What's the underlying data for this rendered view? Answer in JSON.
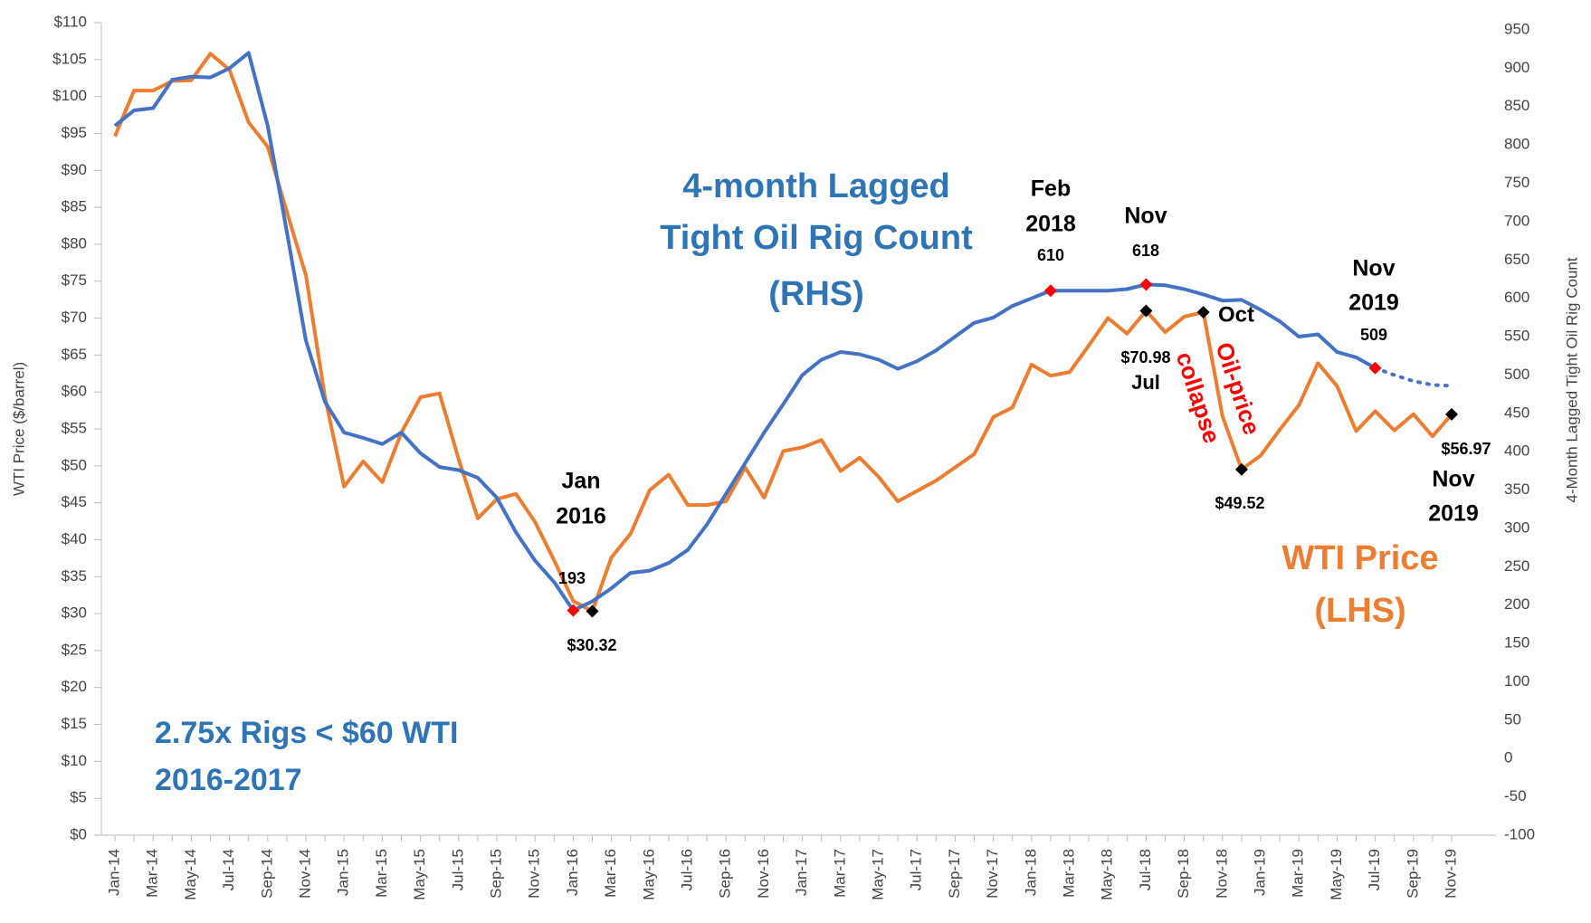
{
  "chart_data": {
    "type": "line",
    "y_label": "WTI Price ($/barrel)",
    "y2_label": "4-Month Lagged Tight Oil Rig Count",
    "categories": [
      "Jan-14",
      null,
      "Mar-14",
      null,
      "May-14",
      null,
      "Jul-14",
      null,
      "Sep-14",
      null,
      "Nov-14",
      null,
      "Jan-15",
      null,
      "Mar-15",
      null,
      "May-15",
      null,
      "Jul-15",
      null,
      "Sep-15",
      null,
      "Nov-15",
      null,
      "Jan-16",
      null,
      "Mar-16",
      null,
      "May-16",
      null,
      "Jul-16",
      null,
      "Sep-16",
      null,
      "Nov-16",
      null,
      "Jan-17",
      null,
      "Mar-17",
      null,
      "May-17",
      null,
      "Jul-17",
      null,
      "Sep-17",
      null,
      "Nov-17",
      null,
      "Jan-18",
      null,
      "Mar-18",
      null,
      "May-18",
      null,
      "Jul-18",
      null,
      "Sep-18",
      null,
      "Nov-18",
      null,
      "Jan-19",
      null,
      "Mar-19",
      null,
      "May-19",
      null,
      "Jul-19",
      null,
      "Sep-19",
      null,
      "Nov-19"
    ],
    "series": [
      {
        "color": "#ed7d31",
        "axis": "y",
        "dotted": false,
        "marker_color": "#000000",
        "highlight": [
          25,
          54,
          57,
          59,
          70
        ],
        "values": [
          94.6,
          100.8,
          100.8,
          102.1,
          102.2,
          105.8,
          103.6,
          96.5,
          93.2,
          84.4,
          75.8,
          59.3,
          47.2,
          50.6,
          47.8,
          54.5,
          59.3,
          59.8,
          50.9,
          42.9,
          45.5,
          46.2,
          42.4,
          37.2,
          31.7,
          30.32,
          37.6,
          40.8,
          46.7,
          48.8,
          44.7,
          44.7,
          45.2,
          49.8,
          45.7,
          52.0,
          52.5,
          53.5,
          49.3,
          51.1,
          48.5,
          45.2,
          46.6,
          48.0,
          49.8,
          51.6,
          56.6,
          57.9,
          63.7,
          62.2,
          62.7,
          66.3,
          70.0,
          67.9,
          70.98,
          68.1,
          70.2,
          70.8,
          56.7,
          49.52,
          51.4,
          54.9,
          58.2,
          63.9,
          60.8,
          54.7,
          57.4,
          54.8,
          57.0,
          54.0,
          56.97
        ],
        "value_labels": [
          null,
          null,
          null,
          null,
          null,
          null,
          null,
          null,
          null,
          null,
          null,
          null,
          null,
          null,
          null,
          null,
          null,
          null,
          null,
          null,
          null,
          null,
          null,
          null,
          null,
          "$30.32",
          null,
          null,
          null,
          null,
          null,
          null,
          null,
          null,
          null,
          null,
          null,
          null,
          null,
          null,
          null,
          null,
          null,
          null,
          null,
          null,
          null,
          null,
          null,
          null,
          null,
          null,
          null,
          null,
          "$70.98",
          null,
          null,
          null,
          null,
          "$49.52",
          null,
          null,
          null,
          null,
          null,
          null,
          null,
          null,
          null,
          null,
          "$56.97"
        ]
      },
      {
        "color": "#4472c4",
        "axis": "y2",
        "dotted": false,
        "marker_color": "#ff0000",
        "highlight": [
          24,
          49,
          54,
          66
        ],
        "labeled": [
          24,
          49,
          54,
          66
        ],
        "values": [
          825,
          845,
          848,
          885,
          889,
          888,
          900,
          920,
          825,
          687,
          545,
          465,
          425,
          418,
          410,
          425,
          398,
          380,
          376,
          366,
          340,
          295,
          258,
          230,
          193,
          205,
          222,
          242,
          245,
          255,
          272,
          305,
          345,
          385,
          425,
          462,
          500,
          520,
          530,
          527,
          520,
          508,
          518,
          532,
          550,
          568,
          575,
          590,
          600,
          610,
          610,
          610,
          610,
          612,
          618,
          617,
          612,
          605,
          597,
          598,
          585,
          570,
          550,
          553,
          530,
          523,
          509,
          null,
          null,
          null,
          null
        ]
      },
      {
        "color": "#4472c4",
        "axis": "y2",
        "dotted": true,
        "values": [
          null,
          null,
          null,
          null,
          null,
          null,
          null,
          null,
          null,
          null,
          null,
          null,
          null,
          null,
          null,
          null,
          null,
          null,
          null,
          null,
          null,
          null,
          null,
          null,
          null,
          null,
          null,
          null,
          null,
          null,
          null,
          null,
          null,
          null,
          null,
          null,
          null,
          null,
          null,
          null,
          null,
          null,
          null,
          null,
          null,
          null,
          null,
          null,
          null,
          null,
          null,
          null,
          null,
          null,
          null,
          null,
          null,
          null,
          null,
          null,
          null,
          null,
          null,
          null,
          null,
          null,
          509,
          500,
          492,
          487,
          486
        ]
      }
    ],
    "ylim": [
      0,
      110
    ],
    "yticks": [
      {
        "value": 0,
        "label": "$0"
      },
      {
        "value": 5,
        "label": "$5"
      },
      {
        "value": 10,
        "label": "$10"
      },
      {
        "value": 15,
        "label": "$15"
      },
      {
        "value": 20,
        "label": "$20"
      },
      {
        "value": 25,
        "label": "$25"
      },
      {
        "value": 30,
        "label": "$30"
      },
      {
        "value": 35,
        "label": "$35"
      },
      {
        "value": 40,
        "label": "$40"
      },
      {
        "value": 45,
        "label": "$45"
      },
      {
        "value": 50,
        "label": "$50"
      },
      {
        "value": 55,
        "label": "$55"
      },
      {
        "value": 60,
        "label": "$60"
      },
      {
        "value": 65,
        "label": "$65"
      },
      {
        "value": 70,
        "label": "$70"
      },
      {
        "value": 75,
        "label": "$75"
      },
      {
        "value": 80,
        "label": "$80"
      },
      {
        "value": 85,
        "label": "$85"
      },
      {
        "value": 90,
        "label": "$90"
      },
      {
        "value": 95,
        "label": "$95"
      },
      {
        "value": 100,
        "label": "$100"
      },
      {
        "value": 105,
        "label": "$105"
      },
      {
        "value": 110,
        "label": "$110"
      }
    ],
    "y2lim": [
      -100,
      950
    ],
    "y2ticks": [
      -100,
      -50,
      0,
      50,
      100,
      150,
      200,
      250,
      300,
      350,
      400,
      450,
      500,
      550,
      600,
      650,
      700,
      750,
      800,
      850,
      900,
      950
    ],
    "grid": false,
    "annotations": [
      "4-month Lagged",
      "Tight Oil Rig Count",
      "(RHS)",
      "Feb",
      "2018",
      "Nov",
      "Nov",
      "2019",
      "Jan",
      "2016",
      "Jul",
      "Oct",
      "Nov",
      "2019",
      "WTI Price",
      "(LHS)",
      "2.75x Rigs < $60 WTI",
      "2016-2017",
      "Oil-price",
      "collapse"
    ]
  }
}
